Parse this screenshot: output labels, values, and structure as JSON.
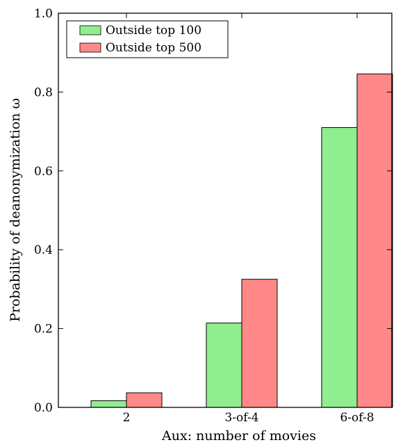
{
  "chart_data": {
    "type": "bar",
    "categories": [
      "2",
      "3-of-4",
      "6-of-8"
    ],
    "series": [
      {
        "name": "Outside top 100",
        "values": [
          0.017,
          0.214,
          0.71
        ],
        "color": "#90ee90"
      },
      {
        "name": "Outside top 500",
        "values": [
          0.037,
          0.325,
          0.846
        ],
        "color": "#ff8888"
      }
    ],
    "xlabel": "Aux: number of movies",
    "ylabel": "Probability of deanonymization ω",
    "ylim": [
      0,
      1.0
    ],
    "yticks": [
      "0.0",
      "0.2",
      "0.4",
      "0.6",
      "0.8",
      "1.0"
    ],
    "legend_position": "top-left",
    "grid": false
  }
}
